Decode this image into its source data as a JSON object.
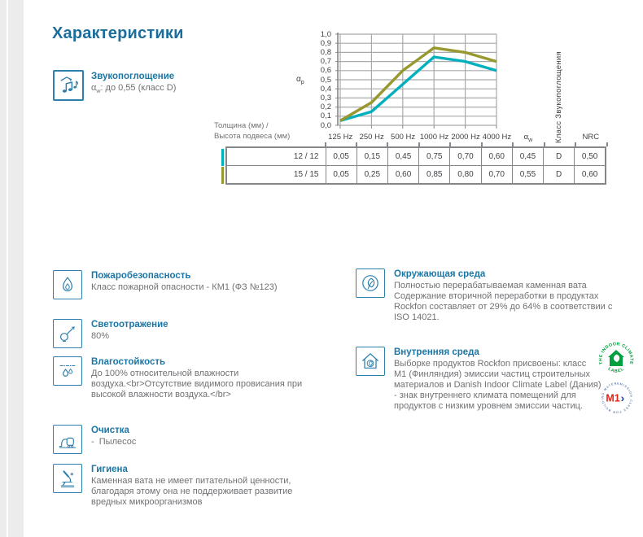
{
  "page": {
    "title": "Характеристики"
  },
  "colors": {
    "accent_blue": "#1b6e9c",
    "icon_blue": "#2d7fae",
    "teal": "#00b0bd",
    "olive": "#97992f",
    "body_text": "#6f7174",
    "table_text": "#414246",
    "grid": "#a7a9ac",
    "axis": "#85878a",
    "badge_green": "#00a03f",
    "badge_red": "#e2231a",
    "badge_blue": "#1b3f94"
  },
  "sound_absorption": {
    "heading": "Звукопоглощение",
    "alpha_base": "α",
    "alpha_sub": "w",
    "alpha_rest": ": до 0,55 (класс D)"
  },
  "chart_data": {
    "type": "line",
    "x": [
      "125 Hz",
      "250 Hz",
      "500 Hz",
      "1000 Hz",
      "2000 Hz",
      "4000 Hz"
    ],
    "series": [
      {
        "name": "12 / 12",
        "color": "#00b0bd",
        "values": [
          0.05,
          0.15,
          0.45,
          0.75,
          0.7,
          0.6
        ]
      },
      {
        "name": "15 / 15",
        "color": "#97992f",
        "values": [
          0.05,
          0.25,
          0.6,
          0.85,
          0.8,
          0.7
        ]
      }
    ],
    "ylabel_base": "α",
    "ylabel_sub": "p",
    "ylim": [
      0,
      1
    ],
    "grid": true,
    "yticks": [
      {
        "label": "1,0",
        "value": 1.0
      },
      {
        "label": "0,9",
        "value": 0.9
      },
      {
        "label": "0,8",
        "value": 0.8
      },
      {
        "label": "0,7",
        "value": 0.7
      },
      {
        "label": "0,6",
        "value": 0.6
      },
      {
        "label": "0,5",
        "value": 0.5
      },
      {
        "label": "0,4",
        "value": 0.4
      },
      {
        "label": "0,3",
        "value": 0.3
      },
      {
        "label": "0,2",
        "value": 0.2
      },
      {
        "label": "0,1",
        "value": 0.1
      },
      {
        "label": "0,0",
        "value": 0.0
      }
    ],
    "right_axis_label": "Класс Звукопоглощения"
  },
  "table": {
    "corner_line1": "Толщина (мм) /",
    "corner_line2": "Высота подвеса (мм)",
    "columns": [
      {
        "label": "125 Hz"
      },
      {
        "label": "250 Hz"
      },
      {
        "label": "500 Hz"
      },
      {
        "label": "1000 Hz"
      },
      {
        "label": "2000 Hz"
      },
      {
        "label": "4000 Hz"
      },
      {
        "base": "α",
        "sub": "w"
      },
      {
        "vertical": "Класс Звукопоглощения"
      },
      {
        "label": "NRC"
      }
    ],
    "rows": [
      {
        "label": "12 / 12",
        "marker_color": "#00b0bd",
        "values": [
          "0,05",
          "0,15",
          "0,45",
          "0,75",
          "0,70",
          "0,60",
          "0,45",
          "D",
          "0,50"
        ]
      },
      {
        "label": "15 / 15",
        "marker_color": "#97992f",
        "values": [
          "0,05",
          "0,25",
          "0,60",
          "0,85",
          "0,80",
          "0,70",
          "0,55",
          "D",
          "0,60"
        ]
      }
    ]
  },
  "features_left": [
    {
      "icon": "flame-icon",
      "heading": "Пожаробезопасность",
      "lines": [
        "Класс пожарной опасности - КМ1 (ФЗ №123)"
      ]
    },
    {
      "icon": "bulb-icon",
      "heading": "Светоотражение",
      "lines": [
        "80%"
      ]
    },
    {
      "icon": "droplets-icon",
      "heading": "Влагостойкость",
      "lines": [
        "До 100% относительной влажности",
        "воздуха.<br>Отсутствие видимого провисания при",
        "высокой влажности воздуха.</br>"
      ]
    },
    {
      "icon": "vacuum-icon",
      "heading": "Очистка",
      "lines": [
        "-  Пылесос"
      ]
    },
    {
      "icon": "microscope-icon",
      "heading": "Гигиена",
      "lines": [
        "Каменная вата не имеет питательной ценности,",
        "благодаря этому она не поддерживает развитие",
        "вредных микроорганизмов"
      ]
    }
  ],
  "features_right": [
    {
      "icon": "leaf-icon",
      "heading": "Окружающая среда",
      "lines": [
        "Полностью перерабатываемая каменная вата",
        "Содержание вторичной переработки в продуктах",
        "Rockfon составляет от 29% до 64% в соответствии с",
        "ISO 14021."
      ]
    },
    {
      "icon": "house-leaf-icon",
      "heading": "Внутренняя среда",
      "lines": [
        "Выборке продуктов Rockfon присвоены: класс",
        "M1 (Финляндия) эмиссии частиц строительных",
        "материалов и Danish Indoor Climate Label (Дания)",
        "- знак внутреннего климата помещений для",
        "продуктов с низким уровнем эмиссии частиц."
      ]
    }
  ],
  "badges": {
    "indoor_climate": {
      "text_top": "THE INDOOR CLIMATE",
      "text_bottom": "LABEL"
    },
    "m1": {
      "ring_text": "EMISSION CLASS FOR BUILDING MATERIALS",
      "label": "M1",
      "arrow": "›"
    }
  }
}
